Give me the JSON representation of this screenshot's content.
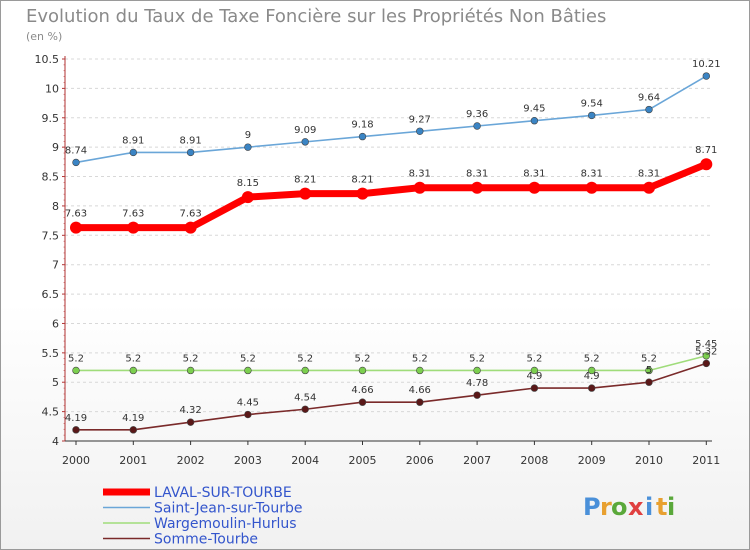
{
  "chart_data": {
    "type": "line",
    "title": "Evolution du Taux de Taxe Foncière sur les Propriétés Non Bâties",
    "subtitle": "(en %)",
    "categories": [
      "2000",
      "2001",
      "2002",
      "2003",
      "2004",
      "2005",
      "2006",
      "2007",
      "2008",
      "2009",
      "2010",
      "2011"
    ],
    "ylim": [
      4,
      10.5
    ],
    "yticks": [
      "4",
      "4.5",
      "5",
      "5.5",
      "6",
      "6.5",
      "7",
      "7.5",
      "8",
      "8.5",
      "9",
      "9.5",
      "10",
      "10.5"
    ],
    "series": [
      {
        "name": "LAVAL-SUR-TOURBE",
        "color": "#ff0000",
        "values": [
          7.63,
          7.63,
          7.63,
          8.15,
          8.21,
          8.21,
          8.31,
          8.31,
          8.31,
          8.31,
          8.31,
          8.71
        ],
        "labels": [
          "7.63",
          "7.63",
          "7.63",
          "8.15",
          "8.21",
          "8.21",
          "8.31",
          "8.31",
          "8.31",
          "8.31",
          "8.31",
          "8.71"
        ]
      },
      {
        "name": "Saint-Jean-sur-Tourbe",
        "color": "#6aa6d8",
        "marker_color": "#3a84c4",
        "values": [
          8.74,
          8.91,
          8.91,
          9,
          9.09,
          9.18,
          9.27,
          9.36,
          9.45,
          9.54,
          9.64,
          10.21
        ],
        "labels": [
          "8.74",
          "8.91",
          "8.91",
          "9",
          "9.09",
          "9.18",
          "9.27",
          "9.36",
          "9.45",
          "9.54",
          "9.64",
          "10.21"
        ]
      },
      {
        "name": "Wargemoulin-Hurlus",
        "color": "#9fdc7a",
        "marker_color": "#7ccf4f",
        "values": [
          5.2,
          5.2,
          5.2,
          5.2,
          5.2,
          5.2,
          5.2,
          5.2,
          5.2,
          5.2,
          5.2,
          5.45
        ],
        "labels": [
          "5.2",
          "5.2",
          "5.2",
          "5.2",
          "5.2",
          "5.2",
          "5.2",
          "5.2",
          "5.2",
          "5.2",
          "5.2",
          "5.45"
        ]
      },
      {
        "name": "Somme-Tourbe",
        "color": "#7a2a2a",
        "marker_color": "#5a1818",
        "values": [
          4.19,
          4.19,
          4.32,
          4.45,
          4.54,
          4.66,
          4.66,
          4.78,
          4.9,
          4.9,
          5,
          5.32
        ],
        "labels": [
          "4.19",
          "4.19",
          "4.32",
          "4.45",
          "4.54",
          "4.66",
          "4.66",
          "4.78",
          "4.9",
          "4.9",
          "5",
          "5.32"
        ]
      }
    ],
    "legend_position": "bottom-left"
  },
  "logo": {
    "letters": [
      "P",
      "r",
      "o",
      "x",
      "i",
      "t",
      "i"
    ],
    "colors": [
      "#4a90d9",
      "#e8a030",
      "#5aa83a",
      "#e04040",
      "#4a90d9",
      "#e8a030",
      "#5aa83a"
    ]
  }
}
